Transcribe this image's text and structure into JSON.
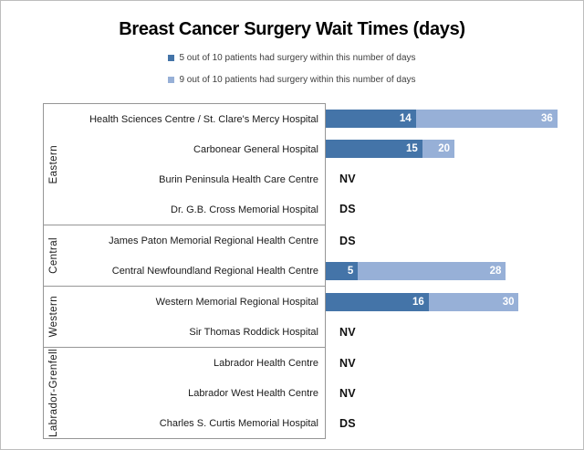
{
  "title": "Breast Cancer Surgery Wait Times (days)",
  "legend": [
    {
      "label": "5 out of 10 patients had surgery within this number of days",
      "color": "#4474A8"
    },
    {
      "label": "9 out of 10 patients had surgery within this number of days",
      "color": "#97B0D7"
    }
  ],
  "chart_data": {
    "type": "bar",
    "orientation": "horizontal",
    "unit": "days",
    "xlim": [
      0,
      40
    ],
    "series_names": [
      "5 out of 10 patients had surgery within this number of days",
      "9 out of 10 patients had surgery within this number of days"
    ],
    "colors": {
      "p50": "#4474A8",
      "p90": "#97B0D7"
    },
    "groups": [
      {
        "region": "Eastern",
        "rows": [
          {
            "label": "Health Sciences Centre / St. Clare's Mercy Hospital",
            "p50": 14,
            "p90": 36,
            "note": null
          },
          {
            "label": "Carbonear General Hospital",
            "p50": 15,
            "p90": 20,
            "note": null
          },
          {
            "label": "Burin Peninsula Health Care Centre",
            "p50": null,
            "p90": null,
            "note": "NV"
          },
          {
            "label": "Dr. G.B. Cross Memorial Hospital",
            "p50": null,
            "p90": null,
            "note": "DS"
          }
        ]
      },
      {
        "region": "Central",
        "rows": [
          {
            "label": "James Paton Memorial Regional Health Centre",
            "p50": null,
            "p90": null,
            "note": "DS"
          },
          {
            "label": "Central Newfoundland Regional Health Centre",
            "p50": 5,
            "p90": 28,
            "note": null
          }
        ]
      },
      {
        "region": "Western",
        "rows": [
          {
            "label": "Western Memorial Regional Hospital",
            "p50": 16,
            "p90": 30,
            "note": null
          },
          {
            "label": "Sir Thomas Roddick Hospital",
            "p50": null,
            "p90": null,
            "note": "NV"
          }
        ]
      },
      {
        "region": "Labrador-Grenfell",
        "rows": [
          {
            "label": "Labrador Health Centre",
            "p50": null,
            "p90": null,
            "note": "NV"
          },
          {
            "label": "Labrador West Health Centre",
            "p50": null,
            "p90": null,
            "note": "NV"
          },
          {
            "label": "Charles S. Curtis Memorial Hospital",
            "p50": null,
            "p90": null,
            "note": "DS"
          }
        ]
      }
    ]
  }
}
